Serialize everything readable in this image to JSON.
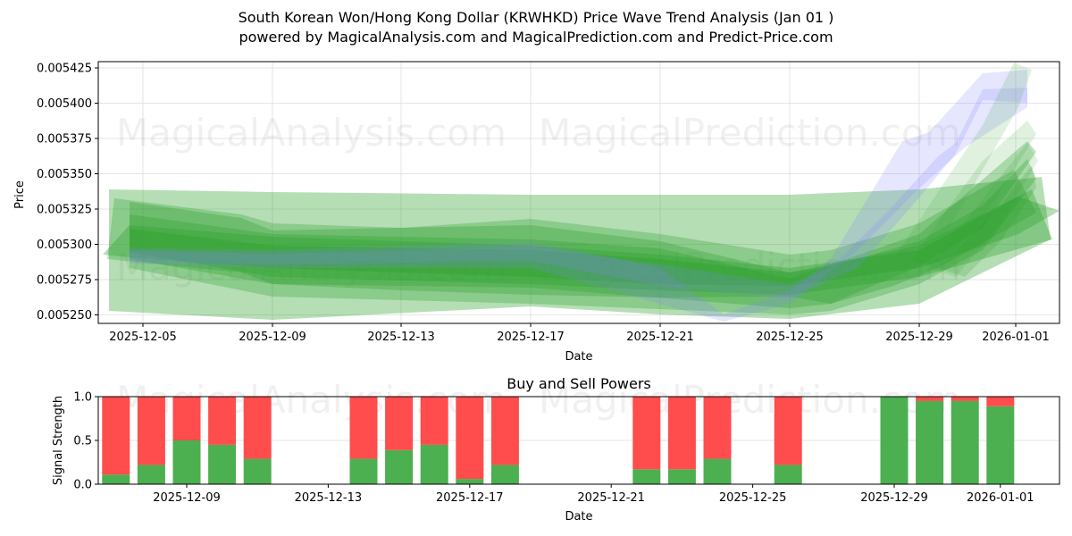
{
  "header": {
    "title": "South Korean Won/Hong Kong Dollar (KRWHKD) Price Wave Trend Analysis (Jan 01 )",
    "subtitle": "powered by MagicalAnalysis.com and MagicalPrediction.com and Predict-Price.com"
  },
  "watermarks": [
    "MagicalAnalysis.com",
    "MagicalPrediction.com"
  ],
  "colors": {
    "band_green": "#2ca02c",
    "band_blue": "#8080ff",
    "buy": "#4caf50",
    "sell": "#ff4c4c",
    "grid": "#dddddd"
  },
  "chart_data": [
    {
      "type": "area",
      "title": "",
      "xlabel": "Date",
      "ylabel": "Price",
      "ylim": [
        0.005243,
        0.00543
      ],
      "yticks": [
        "0.005425",
        "0.005400",
        "0.005375",
        "0.005350",
        "0.005325",
        "0.005300",
        "0.005275",
        "0.005250"
      ],
      "xticks": [
        "2025-12-05",
        "2025-12-09",
        "2025-12-13",
        "2025-12-17",
        "2025-12-21",
        "2025-12-25",
        "2025-12-29",
        "2026-01-01"
      ],
      "grid": true,
      "description": "Overlapping translucent green wave-trend bands plus blue price-path bands; price drifts from ~0.005300 down to ~0.005260 near Dec 25-26, then rises sharply to ~0.005400-0.005420 by Jan 1.",
      "series": [
        {
          "name": "wide-green-band",
          "x": [
            "2025-12-04",
            "2025-12-09",
            "2025-12-17",
            "2025-12-26",
            "2025-12-29",
            "2026-01-02"
          ],
          "upper": [
            0.00534,
            0.005337,
            0.005335,
            0.005336,
            0.005339,
            0.005348
          ],
          "lower": [
            0.005253,
            0.005246,
            0.005257,
            0.005246,
            0.005258,
            0.005298
          ]
        },
        {
          "name": "center-green-band",
          "x": [
            "2025-12-04",
            "2025-12-09",
            "2025-12-17",
            "2025-12-21",
            "2025-12-26",
            "2025-12-29",
            "2026-01-01"
          ],
          "upper": [
            0.00533,
            0.005313,
            0.005315,
            0.0053,
            0.00529,
            0.005305,
            0.005345
          ],
          "lower": [
            0.005285,
            0.005275,
            0.005268,
            0.005262,
            0.005255,
            0.005275,
            0.0053
          ]
        },
        {
          "name": "blue-price-band",
          "x": [
            "2025-12-05",
            "2025-12-09",
            "2025-12-17",
            "2025-12-23",
            "2025-12-26",
            "2025-12-28",
            "2025-12-30",
            "2026-01-01"
          ],
          "upper": [
            0.005302,
            0.005298,
            0.005303,
            0.00527,
            0.00527,
            0.005338,
            0.00538,
            0.00542
          ],
          "lower": [
            0.00529,
            0.005285,
            0.00529,
            0.00525,
            0.005258,
            0.00532,
            0.005365,
            0.0054
          ]
        }
      ]
    },
    {
      "type": "bar",
      "title": "Buy and Sell Powers",
      "xlabel": "Date",
      "ylabel": "Signal Strength",
      "ylim": [
        0,
        1.0
      ],
      "yticks": [
        "0.0",
        "0.5",
        "1.0"
      ],
      "xticks": [
        "2025-12-09",
        "2025-12-13",
        "2025-12-17",
        "2025-12-21",
        "2025-12-25",
        "2025-12-29",
        "2026-01-01"
      ],
      "grid": true,
      "categories": [
        "2025-12-07",
        "2025-12-08",
        "2025-12-09",
        "2025-12-10",
        "2025-12-11",
        "2025-12-14",
        "2025-12-15",
        "2025-12-16",
        "2025-12-17",
        "2025-12-18",
        "2025-12-22",
        "2025-12-23",
        "2025-12-24",
        "2025-12-26",
        "2025-12-29",
        "2025-12-30",
        "2025-12-31",
        "2026-01-01"
      ],
      "series": [
        {
          "name": "Buy",
          "color": "#4caf50",
          "values": [
            0.11,
            0.22,
            0.5,
            0.45,
            0.29,
            0.29,
            0.39,
            0.45,
            0.06,
            0.22,
            0.17,
            0.17,
            0.29,
            0.22,
            1.0,
            0.95,
            0.95,
            0.89
          ]
        },
        {
          "name": "Sell",
          "color": "#ff4c4c",
          "values": [
            0.89,
            0.78,
            0.5,
            0.55,
            0.71,
            0.71,
            0.61,
            0.55,
            0.94,
            0.78,
            0.83,
            0.83,
            0.71,
            0.78,
            0.0,
            0.05,
            0.05,
            0.11
          ]
        }
      ]
    }
  ]
}
